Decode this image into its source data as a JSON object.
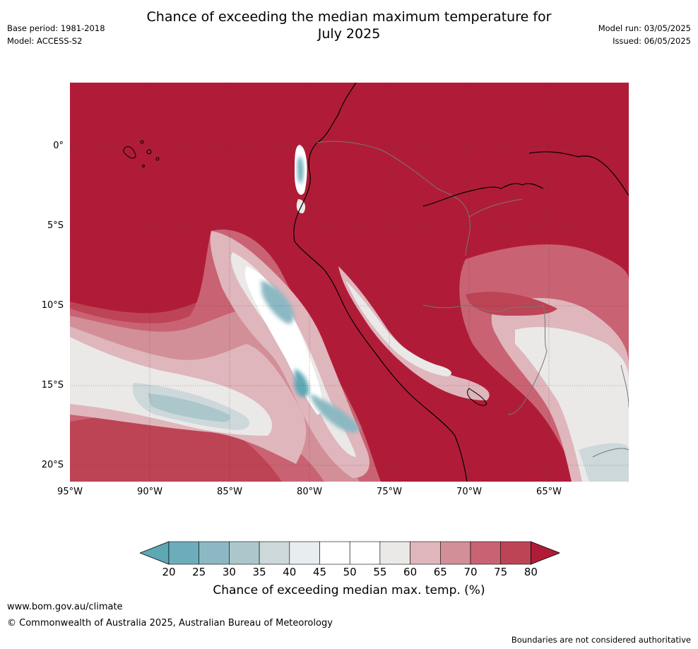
{
  "header": {
    "title_line1": "Chance of exceeding the median maximum temperature for",
    "title_line2": "July 2025",
    "base_period": "Base period: 1981-2018",
    "model": "Model: ACCESS-S2",
    "model_run": "Model run: 03/05/2025",
    "issued": "Issued: 06/05/2025"
  },
  "map": {
    "region": "Western South America and eastern Pacific",
    "lat_labels": [
      "0°",
      "5°S",
      "10°S",
      "15°S",
      "20°S"
    ],
    "lon_labels": [
      "95°W",
      "90°W",
      "85°W",
      "80°W",
      "75°W",
      "70°W",
      "65°W"
    ]
  },
  "colorbar": {
    "ticks": [
      "20",
      "25",
      "30",
      "35",
      "40",
      "45",
      "50",
      "55",
      "60",
      "65",
      "70",
      "75",
      "80"
    ],
    "colors": [
      "#5ea7b5",
      "#6dadbb",
      "#8bb8c3",
      "#abc7cc",
      "#cdd8db",
      "#e8eef0",
      "#ffffff",
      "#ffffff",
      "#ebe9e8",
      "#dfb6bc",
      "#d38f98",
      "#c96373",
      "#bd4455",
      "#b01c37"
    ],
    "label": "Chance of exceeding median max. temp. (%)"
  },
  "footer": {
    "url": "www.bom.gov.au/climate",
    "copyright": "© Commonwealth of Australia 2025, Australian Bureau of Meteorology",
    "disclaimer": "Boundaries are not considered authoritative"
  }
}
